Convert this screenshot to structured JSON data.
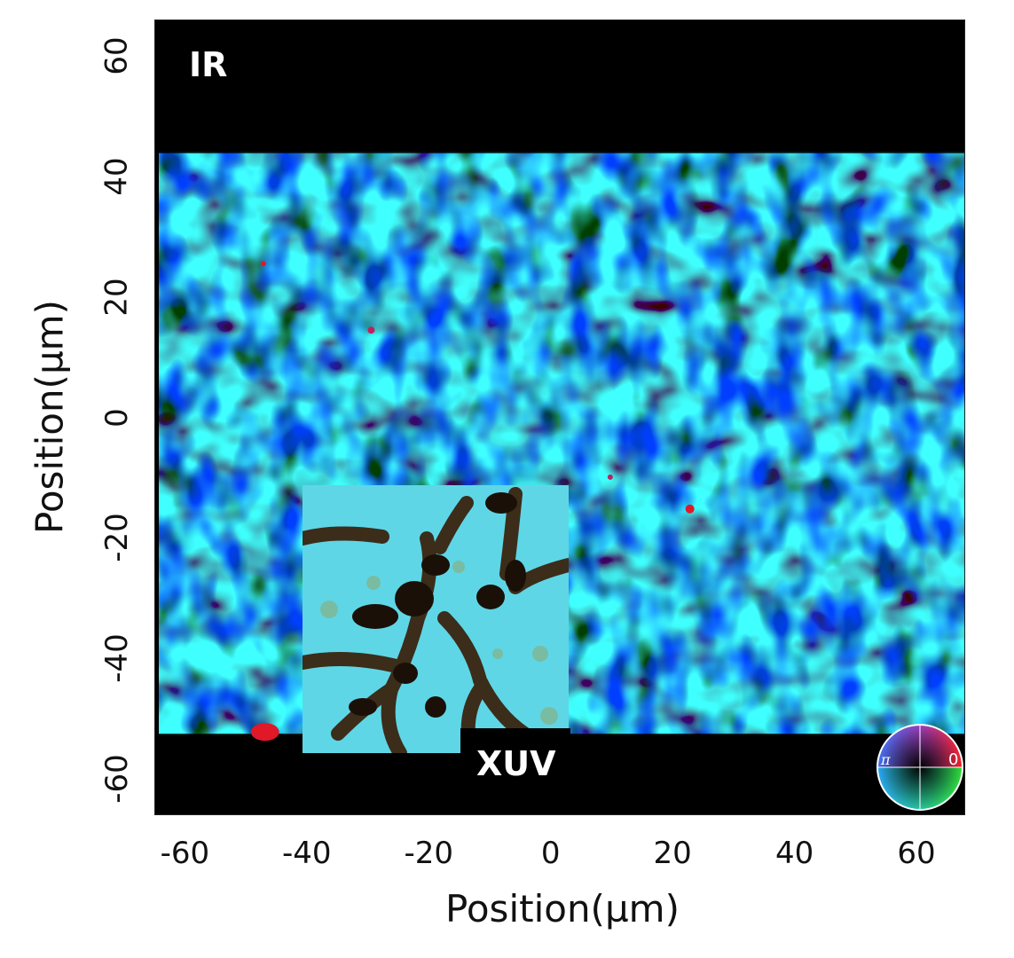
{
  "figure": {
    "ir_label": "IR",
    "xuv_label": "XUV",
    "colors": {
      "background": "#000000",
      "cyan": "#35c8e0",
      "green": "#22f08a",
      "blue": "#1b2be0",
      "red": "#e01828",
      "xuv_substrate": "#5fd6e6",
      "xuv_structure": "#3a2410"
    },
    "phase_wheel": {
      "pi_label": "π",
      "zero_label": "0"
    }
  },
  "axes": {
    "xlabel": "Position(µm)",
    "ylabel": "Position(µm)",
    "xlim": [
      -65,
      68
    ],
    "ylim": [
      -66,
      66
    ],
    "xticks": [
      "-60",
      "-40",
      "-20",
      "0",
      "20",
      "40",
      "60"
    ],
    "yticks": [
      "60",
      "40",
      "20",
      "0",
      "-20",
      "-40",
      "-60"
    ]
  }
}
